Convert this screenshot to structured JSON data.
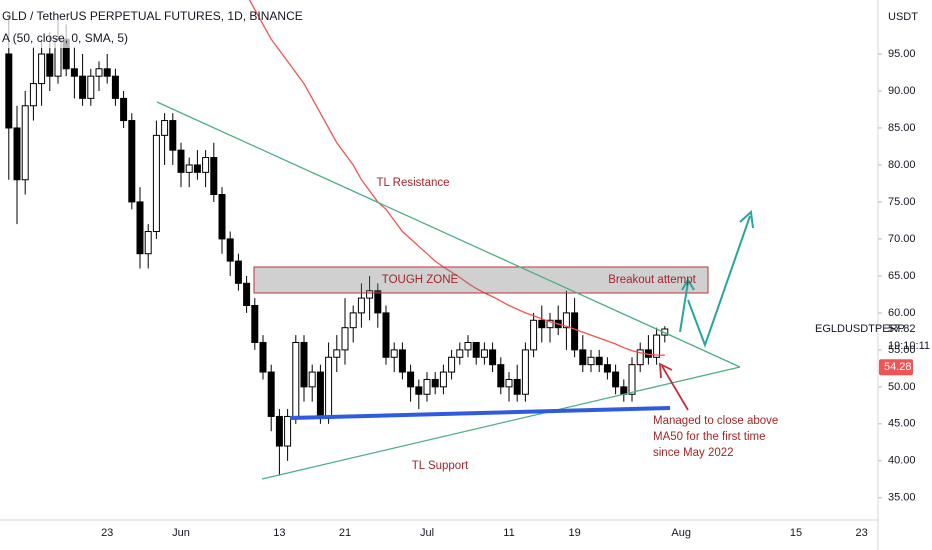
{
  "chart_data": {
    "type": "candlestick",
    "title": "GLD / TetherUS PERPETUAL FUTURES, 1D, BINANCE",
    "indicator": "A (50, close, 0, SMA, 5)",
    "currency": "USDT",
    "symbol": "EGLDUSDTPERP",
    "countdown": "19:10:11",
    "categories": [
      null,
      null,
      null,
      null,
      null,
      null,
      null,
      null,
      null,
      null,
      null,
      null,
      "23",
      null,
      null,
      null,
      null,
      null,
      null,
      null,
      null,
      "Jun",
      null,
      null,
      null,
      null,
      null,
      null,
      null,
      null,
      null,
      null,
      null,
      "13",
      null,
      null,
      null,
      null,
      null,
      null,
      null,
      "21",
      null,
      null,
      null,
      null,
      null,
      null,
      null,
      null,
      null,
      "Jul",
      null,
      null,
      null,
      null,
      null,
      null,
      null,
      null,
      null,
      "11",
      null,
      null,
      null,
      null,
      null,
      null,
      null,
      "19",
      null,
      null,
      null,
      null,
      null,
      null,
      null,
      null,
      null,
      null,
      null,
      null,
      "Aug",
      null,
      null,
      null,
      null,
      null,
      null,
      null,
      null,
      null,
      null,
      null,
      null,
      null,
      "15",
      null,
      null,
      null,
      null,
      null,
      null,
      null,
      "23"
    ],
    "open": [
      95,
      85,
      78,
      88,
      91,
      95,
      92,
      97,
      93,
      92,
      89,
      92,
      93,
      92,
      89,
      86,
      75,
      68,
      71,
      84,
      86,
      82,
      79,
      80,
      79,
      81,
      76,
      70,
      67,
      64,
      61,
      56,
      52,
      46,
      42,
      46,
      56,
      50,
      52,
      46,
      54,
      55,
      58,
      60,
      62,
      63,
      60,
      54,
      55,
      52,
      50,
      49,
      51,
      50,
      52,
      54,
      55,
      56,
      54,
      55,
      53,
      50,
      51,
      49,
      55,
      59,
      58,
      59,
      58,
      60,
      55,
      53,
      54,
      53,
      52,
      50,
      49,
      53,
      55,
      54,
      57,
      null,
      null,
      null,
      null,
      null,
      null,
      null,
      null,
      null,
      null,
      null,
      null,
      null,
      null,
      null,
      null,
      null,
      null,
      null,
      null,
      null,
      null,
      null,
      null
    ],
    "high": [
      100,
      88,
      90,
      96,
      97,
      98,
      100,
      99,
      96,
      95,
      93,
      94,
      95,
      93,
      90,
      87,
      77,
      72,
      86,
      87,
      87,
      83,
      81,
      82,
      82,
      83,
      77,
      71,
      68,
      65,
      62,
      57,
      53,
      47,
      47,
      57,
      57,
      53,
      53,
      56,
      57,
      62,
      61,
      64,
      65,
      64,
      61,
      56,
      56,
      53,
      51,
      52,
      52,
      53,
      55,
      56,
      57,
      56,
      56,
      56,
      54,
      52,
      53,
      56,
      60,
      61,
      60,
      61,
      63,
      62,
      57,
      55,
      55,
      54,
      53,
      51,
      54,
      56,
      57,
      58,
      58.2,
      null,
      null,
      null,
      null,
      null,
      null,
      null,
      null,
      null,
      null,
      null,
      null,
      null,
      null,
      null,
      null,
      null,
      null,
      null,
      null,
      null,
      null,
      null,
      null
    ],
    "low": [
      78,
      72,
      76,
      86,
      88,
      90,
      91,
      92,
      89,
      88,
      88,
      90,
      91,
      88,
      85,
      74,
      66,
      66,
      70,
      80,
      80,
      77,
      77,
      78,
      77,
      75,
      68,
      65,
      63,
      60,
      55,
      51,
      44,
      38,
      40,
      45,
      48,
      48,
      45,
      45,
      52,
      53,
      56,
      58,
      59,
      58,
      53,
      52,
      51,
      48,
      47,
      48,
      49,
      49,
      51,
      53,
      54,
      53,
      53,
      52,
      49,
      48,
      48,
      48,
      54,
      56,
      56,
      57,
      55,
      54,
      52,
      52,
      52,
      51,
      49,
      48,
      48,
      52,
      53,
      53,
      56,
      null,
      null,
      null,
      null,
      null,
      null,
      null,
      null,
      null,
      null,
      null,
      null,
      null,
      null,
      null,
      null,
      null,
      null,
      null,
      null,
      null,
      null,
      null,
      null
    ],
    "close": [
      85,
      78,
      88,
      91,
      95,
      92,
      97,
      93,
      92,
      89,
      92,
      93,
      92,
      89,
      86,
      75,
      68,
      71,
      84,
      86,
      82,
      79,
      80,
      79,
      81,
      76,
      70,
      67,
      64,
      61,
      56,
      52,
      46,
      42,
      46,
      56,
      50,
      52,
      46,
      54,
      55,
      58,
      60,
      62,
      63,
      60,
      54,
      55,
      52,
      50,
      49,
      51,
      50,
      52,
      54,
      55,
      56,
      54,
      55,
      53,
      50,
      51,
      49,
      55,
      59,
      58,
      59,
      58,
      60,
      55,
      53,
      54,
      53,
      52,
      50,
      49,
      53,
      55,
      54,
      57,
      57.82,
      null,
      null,
      null,
      null,
      null,
      null,
      null,
      null,
      null,
      null,
      null,
      null,
      null,
      null,
      null,
      null,
      null,
      null,
      null,
      null,
      null,
      null,
      null,
      null
    ],
    "up_color": "#ffffff",
    "down_color": "#000000",
    "ma": {
      "color": "#f05454",
      "values": [
        null,
        null,
        null,
        null,
        null,
        null,
        null,
        null,
        null,
        null,
        null,
        null,
        null,
        null,
        null,
        null,
        null,
        null,
        null,
        null,
        null,
        null,
        null,
        null,
        null,
        null,
        null,
        null,
        null,
        103,
        101,
        99,
        97,
        95.5,
        94,
        92.5,
        91,
        89,
        87,
        85,
        83,
        81.5,
        80,
        78,
        76.5,
        75,
        74,
        72.5,
        71,
        70,
        69,
        68,
        67,
        66.2,
        65.5,
        64.8,
        64,
        63.3,
        62.7,
        62.2,
        61.6,
        61,
        60.5,
        60,
        59.6,
        59.2,
        58.8,
        58.5,
        58.2,
        57.8,
        57.4,
        57,
        56.6,
        56.2,
        55.8,
        55.3,
        54.9,
        54.6,
        54.4,
        54.3,
        54.28,
        null,
        null,
        null,
        null,
        null,
        null,
        null,
        null,
        null,
        null,
        null,
        null,
        null,
        null,
        null,
        null,
        null,
        null,
        null,
        null,
        null,
        null,
        null,
        null
      ]
    },
    "ylim": [
      32,
      102.3
    ],
    "yticks": [
      {
        "value": 35,
        "label": "35.00"
      },
      {
        "value": 40,
        "label": "40.00"
      },
      {
        "value": 45,
        "label": "45.00"
      },
      {
        "value": 50,
        "label": "50.00"
      },
      {
        "value": 55,
        "label": "55.00"
      },
      {
        "value": 60,
        "label": "60.00"
      },
      {
        "value": 65,
        "label": "65.00"
      },
      {
        "value": 70,
        "label": "70.00"
      },
      {
        "value": 75,
        "label": "75.00"
      },
      {
        "value": 80,
        "label": "80.00"
      },
      {
        "value": 85,
        "label": "85.00"
      },
      {
        "value": 90,
        "label": "90.00"
      },
      {
        "value": 95,
        "label": "95.00"
      }
    ],
    "annotations": {
      "resistance": "TL Resistance",
      "zone": "TOUGH ZONE",
      "breakout": "Breakout attempt",
      "support": "TL Support",
      "note": [
        "Managed to close above",
        "MA50 for the first time",
        "since May 2022"
      ]
    }
  }
}
